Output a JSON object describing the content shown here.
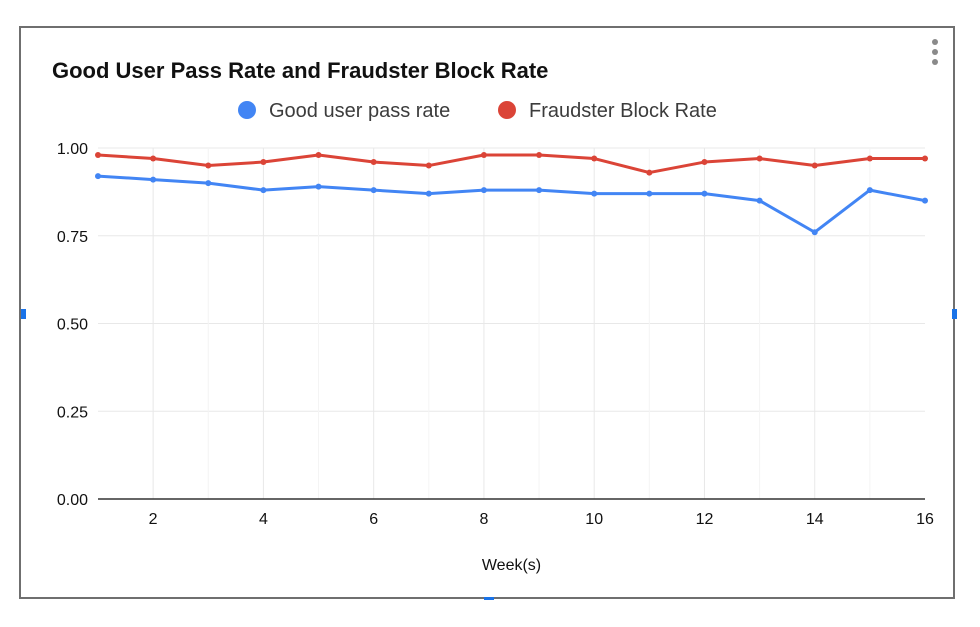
{
  "chart_data": {
    "type": "line",
    "title": "Good User Pass Rate and Fraudster Block Rate",
    "xlabel": "Week(s)",
    "ylabel": "",
    "x": [
      1,
      2,
      3,
      4,
      5,
      6,
      7,
      8,
      9,
      10,
      11,
      12,
      13,
      14,
      15,
      16
    ],
    "xlim": [
      1,
      16
    ],
    "ylim": [
      0,
      1
    ],
    "x_ticks": [
      "2",
      "4",
      "6",
      "8",
      "10",
      "12",
      "14",
      "16"
    ],
    "y_ticks": [
      "0.00",
      "0.25",
      "0.50",
      "0.75",
      "1.00"
    ],
    "legend_position": "top",
    "grid": true,
    "series": [
      {
        "name": "Good user pass rate",
        "color": "#4285f4",
        "values": [
          0.92,
          0.91,
          0.9,
          0.88,
          0.89,
          0.88,
          0.87,
          0.88,
          0.88,
          0.87,
          0.87,
          0.87,
          0.85,
          0.76,
          0.88,
          0.85
        ]
      },
      {
        "name": "Fraudster Block Rate",
        "color": "#db4437",
        "values": [
          0.98,
          0.97,
          0.95,
          0.96,
          0.98,
          0.96,
          0.95,
          0.98,
          0.98,
          0.97,
          0.93,
          0.96,
          0.97,
          0.95,
          0.97,
          0.97
        ]
      }
    ]
  },
  "icons": {
    "menu": "more-vert-icon"
  }
}
